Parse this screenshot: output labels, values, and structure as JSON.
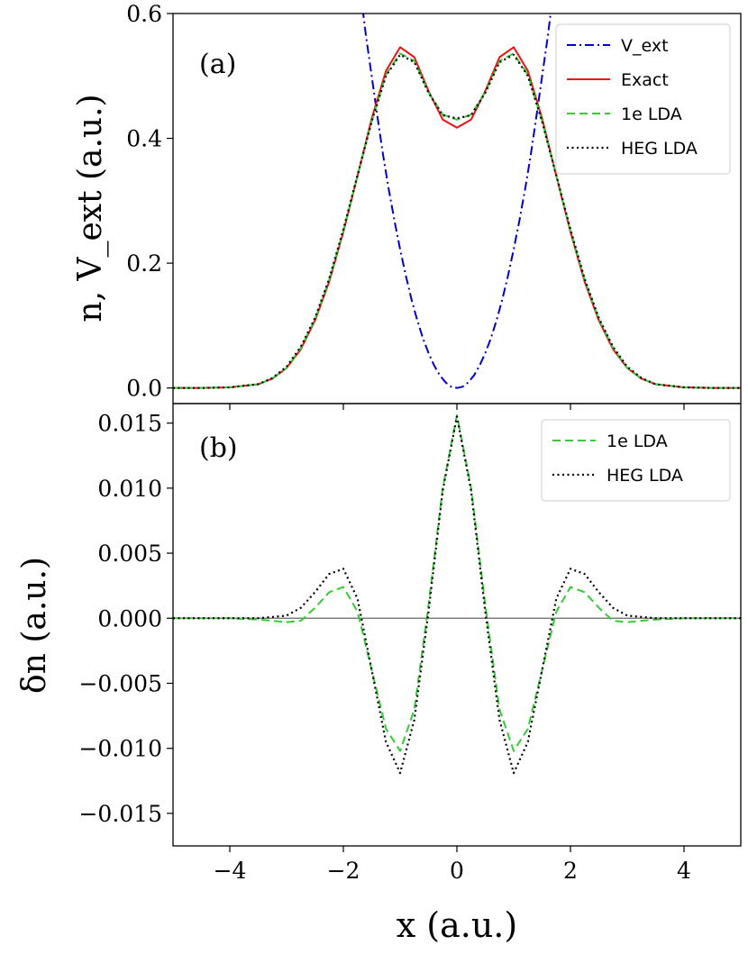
{
  "chart_data": [
    {
      "type": "line",
      "panel_label": "(a)",
      "xlabel": "",
      "ylabel": "n, V_ext (a.u.)",
      "xlim": [
        -5,
        5
      ],
      "ylim": [
        -0.025,
        0.6
      ],
      "yticks": [
        0.0,
        0.2,
        0.4,
        0.6
      ],
      "ytick_labels": [
        "0.0",
        "0.2",
        "0.4",
        "0.6"
      ],
      "legend_position": "top-right",
      "grid": false,
      "series": [
        {
          "name": "V_ext",
          "color": "#0000cc",
          "dash": "dashdot",
          "x": [
            -1.7,
            -1.6,
            -1.5,
            -1.4,
            -1.3,
            -1.2,
            -1.1,
            -1.0,
            -0.9,
            -0.8,
            -0.7,
            -0.6,
            -0.5,
            -0.4,
            -0.3,
            -0.2,
            -0.1,
            0.0,
            0.1,
            0.2,
            0.3,
            0.4,
            0.5,
            0.6,
            0.7,
            0.8,
            0.9,
            1.0,
            1.1,
            1.2,
            1.3,
            1.4,
            1.5,
            1.6,
            1.7
          ],
          "values": [
            0.636,
            0.563,
            0.499,
            0.435,
            0.373,
            0.318,
            0.268,
            0.222,
            0.18,
            0.142,
            0.109,
            0.08,
            0.056,
            0.036,
            0.02,
            0.009,
            0.002,
            0.0,
            0.002,
            0.009,
            0.02,
            0.036,
            0.056,
            0.08,
            0.109,
            0.142,
            0.18,
            0.222,
            0.268,
            0.318,
            0.373,
            0.435,
            0.499,
            0.563,
            0.636
          ]
        },
        {
          "name": "Exact",
          "color": "#ee1111",
          "dash": "solid",
          "x": [
            -5.0,
            -4.5,
            -4.0,
            -3.5,
            -3.25,
            -3.0,
            -2.75,
            -2.5,
            -2.25,
            -2.0,
            -1.75,
            -1.5,
            -1.25,
            -1.0,
            -0.75,
            -0.5,
            -0.25,
            0.0,
            0.25,
            0.5,
            0.75,
            1.0,
            1.25,
            1.5,
            1.75,
            2.0,
            2.25,
            2.5,
            2.75,
            3.0,
            3.25,
            3.5,
            4.0,
            4.5,
            5.0
          ],
          "values": [
            0.0,
            0.0,
            0.001,
            0.006,
            0.015,
            0.032,
            0.062,
            0.108,
            0.17,
            0.25,
            0.34,
            0.432,
            0.508,
            0.546,
            0.53,
            0.476,
            0.43,
            0.417,
            0.43,
            0.476,
            0.53,
            0.546,
            0.508,
            0.432,
            0.34,
            0.25,
            0.17,
            0.108,
            0.062,
            0.032,
            0.015,
            0.006,
            0.001,
            0.0,
            0.0
          ]
        },
        {
          "name": "1e LDA",
          "color": "#33cc33",
          "dash": "dashed",
          "x": [
            -5.0,
            -4.5,
            -4.0,
            -3.5,
            -3.25,
            -3.0,
            -2.75,
            -2.5,
            -2.25,
            -2.0,
            -1.75,
            -1.5,
            -1.25,
            -1.0,
            -0.75,
            -0.5,
            -0.25,
            0.0,
            0.25,
            0.5,
            0.75,
            1.0,
            1.25,
            1.5,
            1.75,
            2.0,
            2.25,
            2.5,
            2.75,
            3.0,
            3.25,
            3.5,
            4.0,
            4.5,
            5.0
          ],
          "values": [
            0.0,
            0.0,
            0.001,
            0.006,
            0.015,
            0.032,
            0.064,
            0.11,
            0.173,
            0.252,
            0.34,
            0.428,
            0.502,
            0.536,
            0.524,
            0.474,
            0.438,
            0.43,
            0.438,
            0.474,
            0.524,
            0.536,
            0.502,
            0.428,
            0.34,
            0.252,
            0.173,
            0.11,
            0.064,
            0.032,
            0.015,
            0.006,
            0.001,
            0.0,
            0.0
          ]
        },
        {
          "name": "HEG LDA",
          "color": "#000000",
          "dash": "dotted",
          "x": [
            -5.0,
            -4.5,
            -4.0,
            -3.5,
            -3.25,
            -3.0,
            -2.75,
            -2.5,
            -2.25,
            -2.0,
            -1.75,
            -1.5,
            -1.25,
            -1.0,
            -0.75,
            -0.5,
            -0.25,
            0.0,
            0.25,
            0.5,
            0.75,
            1.0,
            1.25,
            1.5,
            1.75,
            2.0,
            2.25,
            2.5,
            2.75,
            3.0,
            3.25,
            3.5,
            4.0,
            4.5,
            5.0
          ],
          "values": [
            0.0,
            0.0,
            0.001,
            0.006,
            0.016,
            0.034,
            0.066,
            0.112,
            0.175,
            0.254,
            0.341,
            0.427,
            0.5,
            0.534,
            0.522,
            0.473,
            0.437,
            0.432,
            0.437,
            0.473,
            0.522,
            0.534,
            0.5,
            0.427,
            0.341,
            0.254,
            0.175,
            0.112,
            0.066,
            0.034,
            0.016,
            0.006,
            0.001,
            0.0,
            0.0
          ]
        }
      ]
    },
    {
      "type": "line",
      "panel_label": "(b)",
      "xlabel": "x (a.u.)",
      "ylabel": "δn (a.u.)",
      "xlim": [
        -5,
        5
      ],
      "ylim": [
        -0.0175,
        0.0165
      ],
      "xticks": [
        -4,
        -2,
        0,
        2,
        4
      ],
      "xtick_labels": [
        "−4",
        "−2",
        "0",
        "2",
        "4"
      ],
      "yticks": [
        -0.015,
        -0.01,
        -0.005,
        0.0,
        0.005,
        0.01,
        0.015
      ],
      "ytick_labels": [
        "−0.015",
        "−0.010",
        "−0.005",
        "0.000",
        "0.005",
        "0.010",
        "0.015"
      ],
      "reference_line_y": 0.0,
      "legend_position": "top-right",
      "grid": false,
      "series": [
        {
          "name": "1e LDA",
          "color": "#33cc33",
          "dash": "dashed",
          "x": [
            -5.0,
            -4.0,
            -3.5,
            -3.0,
            -2.75,
            -2.5,
            -2.25,
            -2.0,
            -1.75,
            -1.5,
            -1.25,
            -1.0,
            -0.75,
            -0.5,
            -0.25,
            0.0,
            0.25,
            0.5,
            0.75,
            1.0,
            1.25,
            1.5,
            1.75,
            2.0,
            2.25,
            2.5,
            2.75,
            3.0,
            3.5,
            4.0,
            5.0
          ],
          "values": [
            0.0,
            0.0,
            -0.0001,
            -0.0003,
            -0.0002,
            0.0008,
            0.002,
            0.0024,
            0.0005,
            -0.004,
            -0.0085,
            -0.0102,
            -0.007,
            0.001,
            0.01,
            0.0156,
            0.01,
            0.001,
            -0.007,
            -0.0102,
            -0.0085,
            -0.004,
            0.0005,
            0.0024,
            0.002,
            0.0008,
            -0.0002,
            -0.0003,
            -0.0001,
            0.0,
            0.0
          ]
        },
        {
          "name": "HEG LDA",
          "color": "#000000",
          "dash": "dotted",
          "x": [
            -5.0,
            -4.0,
            -3.5,
            -3.0,
            -2.75,
            -2.5,
            -2.25,
            -2.0,
            -1.75,
            -1.5,
            -1.25,
            -1.0,
            -0.75,
            -0.5,
            -0.25,
            0.0,
            0.25,
            0.5,
            0.75,
            1.0,
            1.25,
            1.5,
            1.75,
            2.0,
            2.25,
            2.5,
            2.75,
            3.0,
            3.5,
            4.0,
            5.0
          ],
          "values": [
            0.0,
            0.0,
            0.0,
            0.0002,
            0.0008,
            0.002,
            0.0034,
            0.0038,
            0.0015,
            -0.004,
            -0.0095,
            -0.0119,
            -0.0078,
            0.0005,
            0.0098,
            0.0155,
            0.0098,
            0.0005,
            -0.0078,
            -0.0119,
            -0.0095,
            -0.004,
            0.0015,
            0.0038,
            0.0034,
            0.002,
            0.0008,
            0.0002,
            0.0,
            0.0,
            0.0
          ]
        }
      ]
    }
  ]
}
